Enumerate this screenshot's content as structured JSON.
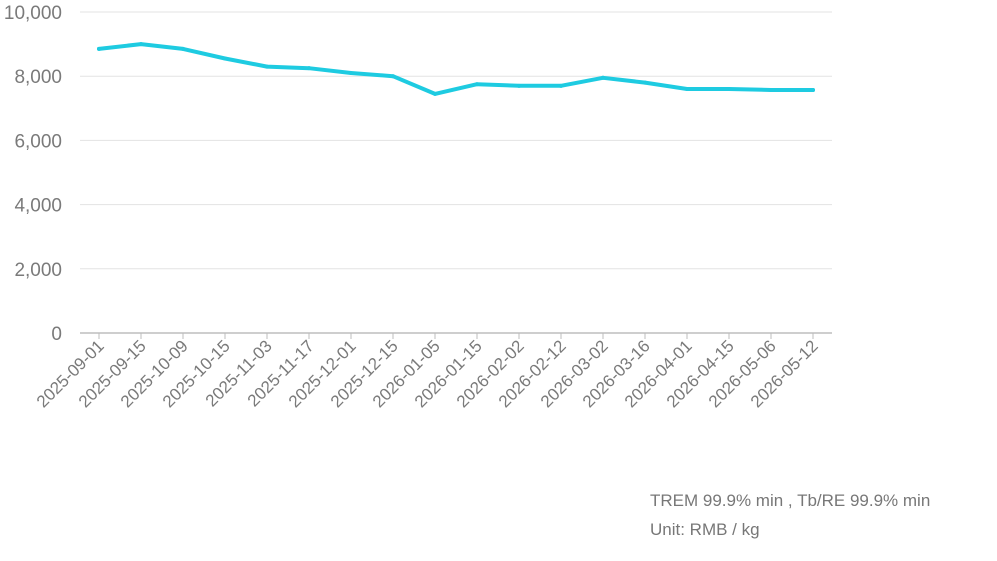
{
  "chart_data": {
    "type": "line",
    "title": "",
    "xlabel": "",
    "ylabel": "",
    "categories": [
      "2025-09-01",
      "2025-09-15",
      "2025-10-09",
      "2025-10-15",
      "2025-11-03",
      "2025-11-17",
      "2025-12-01",
      "2025-12-15",
      "2026-01-05",
      "2026-01-15",
      "2026-02-02",
      "2026-02-12",
      "2026-03-02",
      "2026-03-16",
      "2026-04-01",
      "2026-04-15",
      "2026-05-06",
      "2026-05-12"
    ],
    "series": [
      {
        "values": [
          8850,
          9000,
          8850,
          8550,
          8300,
          8250,
          8100,
          8000,
          7450,
          7750,
          7700,
          7700,
          7950,
          7800,
          7600,
          7600,
          7570,
          7570
        ],
        "color": "#1ecbe1"
      }
    ],
    "ylim": [
      0,
      10000
    ],
    "yticks": [
      0,
      2000,
      4000,
      6000,
      8000,
      10000
    ],
    "ytick_labels": [
      "0",
      "2,000",
      "4,000",
      "6,000",
      "8,000",
      "10,000"
    ],
    "grid": true,
    "legend": "none"
  },
  "notes": {
    "line1": "TREM 99.9% min , Tb/RE 99.9% min",
    "line2": "Unit: RMB / kg"
  },
  "colors": {
    "grid": "#e3e3e3",
    "axis": "#bdbdbd",
    "text": "#7a7a7a",
    "line": "#1ecbe1"
  }
}
